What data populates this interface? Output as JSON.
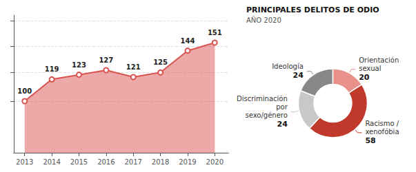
{
  "chart_data": [
    {
      "type": "area",
      "x": [
        2013,
        2014,
        2015,
        2016,
        2017,
        2018,
        2019,
        2020
      ],
      "values": [
        100,
        119,
        123,
        127,
        121,
        125,
        144,
        151
      ],
      "color": "#d9534f",
      "marker": "circle",
      "xlim": [
        2012.6,
        2020.5
      ],
      "xticks": [
        2013,
        2014,
        2015,
        2016,
        2017,
        2018,
        2019,
        2020
      ],
      "ylim": [
        55,
        175
      ],
      "yticks": [
        100,
        125,
        148,
        170
      ],
      "grid": true,
      "tick_labels": "x",
      "data_labels": true
    },
    {
      "type": "donut",
      "title": "PRINCIPALES DELITOS DE ODIO",
      "subtitle": "AÑO 2020",
      "categories": [
        "Orientación sexual",
        "Racismo / xenofóbia",
        "Discriminación por sexo/género",
        "Ideología"
      ],
      "values": [
        20,
        58,
        24,
        24
      ],
      "colors": [
        "#e8908a",
        "#c0392b",
        "#c8c8c8",
        "#888888"
      ],
      "data_labels": true
    }
  ]
}
